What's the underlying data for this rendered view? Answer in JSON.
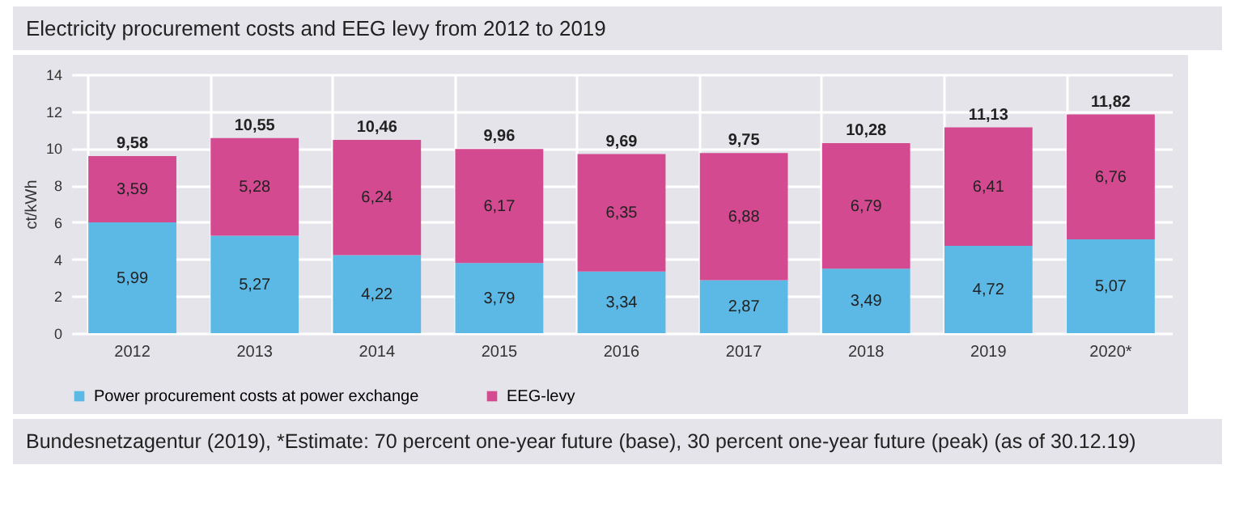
{
  "chart_data": {
    "type": "bar",
    "title": "Electricity procurement costs and EEG levy from 2012 to 2019",
    "ylabel": "ct/kWh",
    "categories": [
      "2012",
      "2013",
      "2014",
      "2015",
      "2016",
      "2017",
      "2018",
      "2019",
      "2020*"
    ],
    "stacked": true,
    "series": [
      {
        "name": "Power procurement costs at power exchange",
        "color": "#5cb9e6",
        "values": [
          5.99,
          5.27,
          4.22,
          3.79,
          3.34,
          2.87,
          3.49,
          4.72,
          5.07
        ],
        "value_labels": [
          "5,99",
          "5,27",
          "4,22",
          "3,79",
          "3,34",
          "2,87",
          "3,49",
          "4,72",
          "5,07"
        ]
      },
      {
        "name": "EEG-levy",
        "color": "#d44a90",
        "values": [
          3.59,
          5.28,
          6.24,
          6.17,
          6.35,
          6.88,
          6.79,
          6.41,
          6.76
        ],
        "value_labels": [
          "3,59",
          "5,28",
          "6,24",
          "6,17",
          "6,35",
          "6,88",
          "6,79",
          "6,41",
          "6,76"
        ]
      }
    ],
    "totals": [
      "9,58",
      "10,55",
      "10,46",
      "9,96",
      "9,69",
      "9,75",
      "10,28",
      "11,13",
      "11,82"
    ],
    "ylim": [
      0,
      14
    ],
    "yticks": [
      0,
      2,
      4,
      6,
      8,
      10,
      12,
      14
    ],
    "grid": true,
    "legend": "bottom",
    "annotations": [
      "Bundesnetzagentur (2019), *Estimate: 70 percent one-year future (base), 30 percent one-year future (peak) (as of 30.12.19)"
    ]
  }
}
